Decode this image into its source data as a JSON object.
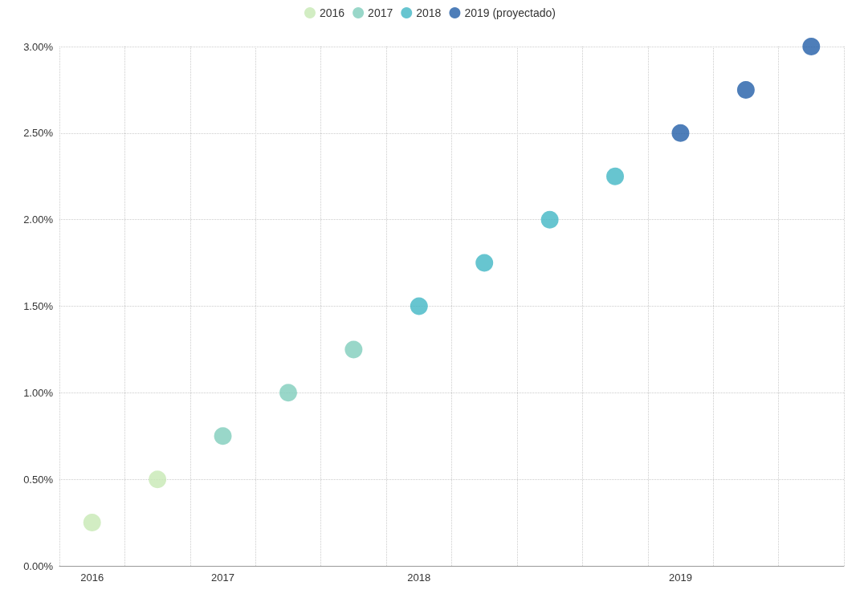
{
  "chart_data": {
    "type": "scatter",
    "categories": [
      "2016",
      null,
      "2017",
      null,
      null,
      "2018",
      null,
      null,
      null,
      "2019",
      null,
      null
    ],
    "series": [
      {
        "name": "2016",
        "color": "#c7e9b4",
        "values": [
          0.25,
          0.5,
          null,
          null,
          null,
          null,
          null,
          null,
          null,
          null,
          null,
          null
        ]
      },
      {
        "name": "2017",
        "color": "#7fcdbb",
        "values": [
          null,
          null,
          0.75,
          1.0,
          1.25,
          null,
          null,
          null,
          null,
          null,
          null,
          null
        ]
      },
      {
        "name": "2018",
        "color": "#41b6c4",
        "values": [
          null,
          null,
          null,
          null,
          null,
          1.5,
          1.75,
          2.0,
          2.25,
          null,
          null,
          null
        ]
      },
      {
        "name": "2019 (proyectado)",
        "color": "#225ea8",
        "values": [
          null,
          null,
          null,
          null,
          null,
          null,
          null,
          null,
          null,
          2.5,
          2.75,
          3.0
        ]
      }
    ],
    "ylim": [
      0,
      3
    ],
    "yticks": [
      {
        "value": 0,
        "label": "0.00%"
      },
      {
        "value": 0.5,
        "label": "0.50%"
      },
      {
        "value": 1,
        "label": "1.00%"
      },
      {
        "value": 1.5,
        "label": "1.50%"
      },
      {
        "value": 2,
        "label": "2.00%"
      },
      {
        "value": 2.5,
        "label": "2.50%"
      },
      {
        "value": 3,
        "label": "3.00%"
      }
    ],
    "grid": true,
    "legend": "top",
    "marker": "circle"
  }
}
